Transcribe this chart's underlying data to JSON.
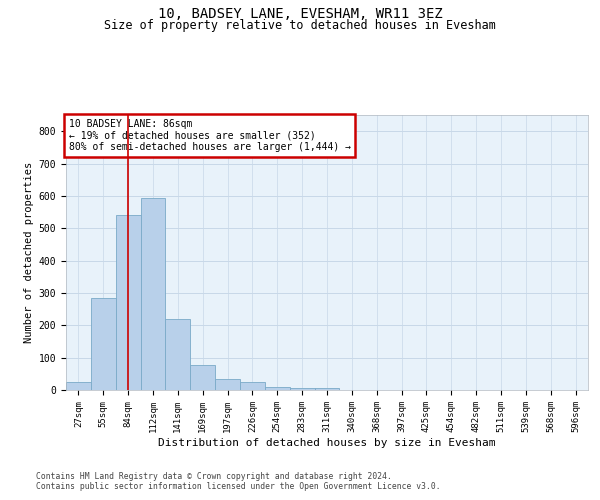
{
  "title": "10, BADSEY LANE, EVESHAM, WR11 3EZ",
  "subtitle": "Size of property relative to detached houses in Evesham",
  "xlabel": "Distribution of detached houses by size in Evesham",
  "ylabel": "Number of detached properties",
  "footer1": "Contains HM Land Registry data © Crown copyright and database right 2024.",
  "footer2": "Contains public sector information licensed under the Open Government Licence v3.0.",
  "bar_labels": [
    "27sqm",
    "55sqm",
    "84sqm",
    "112sqm",
    "141sqm",
    "169sqm",
    "197sqm",
    "226sqm",
    "254sqm",
    "283sqm",
    "311sqm",
    "340sqm",
    "368sqm",
    "397sqm",
    "425sqm",
    "454sqm",
    "482sqm",
    "511sqm",
    "539sqm",
    "568sqm",
    "596sqm"
  ],
  "bar_values": [
    25,
    285,
    540,
    595,
    220,
    78,
    35,
    25,
    10,
    6,
    5,
    0,
    0,
    0,
    0,
    0,
    0,
    0,
    0,
    0,
    0
  ],
  "bar_color": "#b8d0ea",
  "bar_edgecolor": "#7aaac8",
  "bar_linewidth": 0.6,
  "property_line_x": 2,
  "property_line_color": "#cc0000",
  "annotation_text": "10 BADSEY LANE: 86sqm\n← 19% of detached houses are smaller (352)\n80% of semi-detached houses are larger (1,444) →",
  "annotation_box_edgecolor": "#cc0000",
  "ylim": [
    0,
    850
  ],
  "yticks": [
    0,
    100,
    200,
    300,
    400,
    500,
    600,
    700,
    800
  ],
  "grid_color": "#c8d8e8",
  "background_color": "#e8f2fa",
  "title_fontsize": 10,
  "subtitle_fontsize": 8.5,
  "xlabel_fontsize": 8,
  "ylabel_fontsize": 7.5,
  "tick_fontsize": 6.5,
  "ann_fontsize": 7,
  "footer_fontsize": 5.8
}
